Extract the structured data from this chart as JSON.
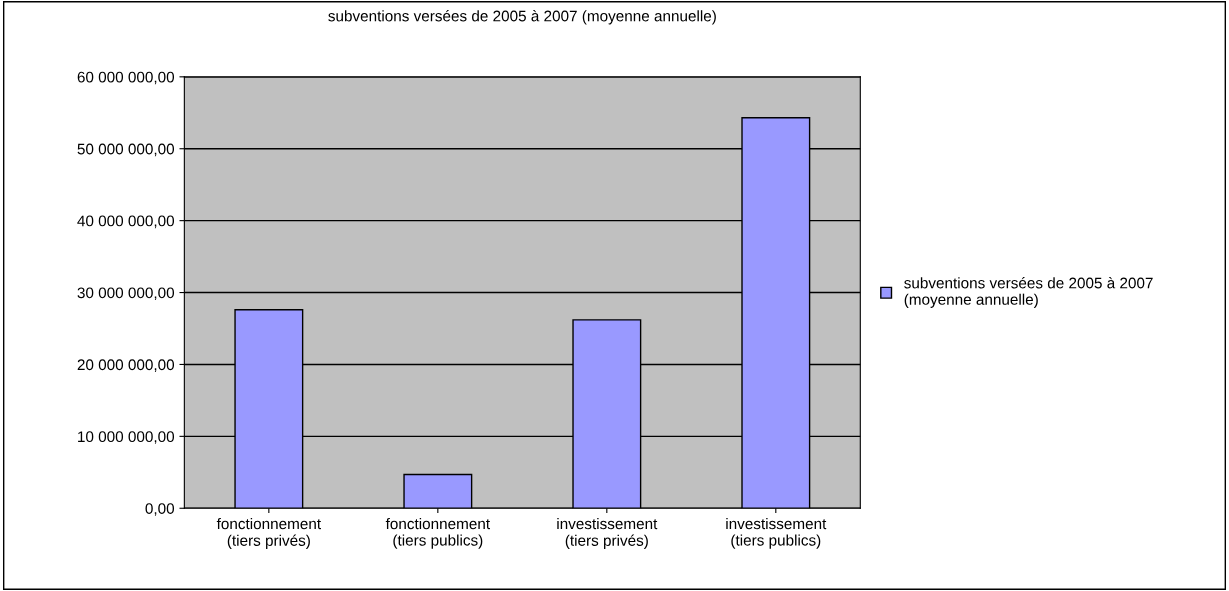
{
  "chart_data": {
    "type": "bar",
    "title": "subventions versées de 2005 à 2007 (moyenne annuelle)",
    "categories": [
      "fonctionnement\n(tiers privés)",
      "fonctionnement\n(tiers publics)",
      "investissement\n(tiers privés)",
      "investissement\n(tiers publics)"
    ],
    "series": [
      {
        "name": "subventions versées de 2005 à 2007\n(moyenne annuelle)",
        "color": "#9999ff",
        "values": [
          27600000,
          4700000,
          26200000,
          54300000
        ]
      }
    ],
    "ylim": [
      0,
      60000000
    ],
    "yticks": [
      {
        "value": 0,
        "label": "0,00"
      },
      {
        "value": 10000000,
        "label": "10 000 000,00"
      },
      {
        "value": 20000000,
        "label": "20 000 000,00"
      },
      {
        "value": 30000000,
        "label": "30 000 000,00"
      },
      {
        "value": 40000000,
        "label": "40 000 000,00"
      },
      {
        "value": 50000000,
        "label": "50 000 000,00"
      },
      {
        "value": 60000000,
        "label": "60 000 000,00"
      }
    ],
    "grid": "y",
    "legend": "right"
  }
}
